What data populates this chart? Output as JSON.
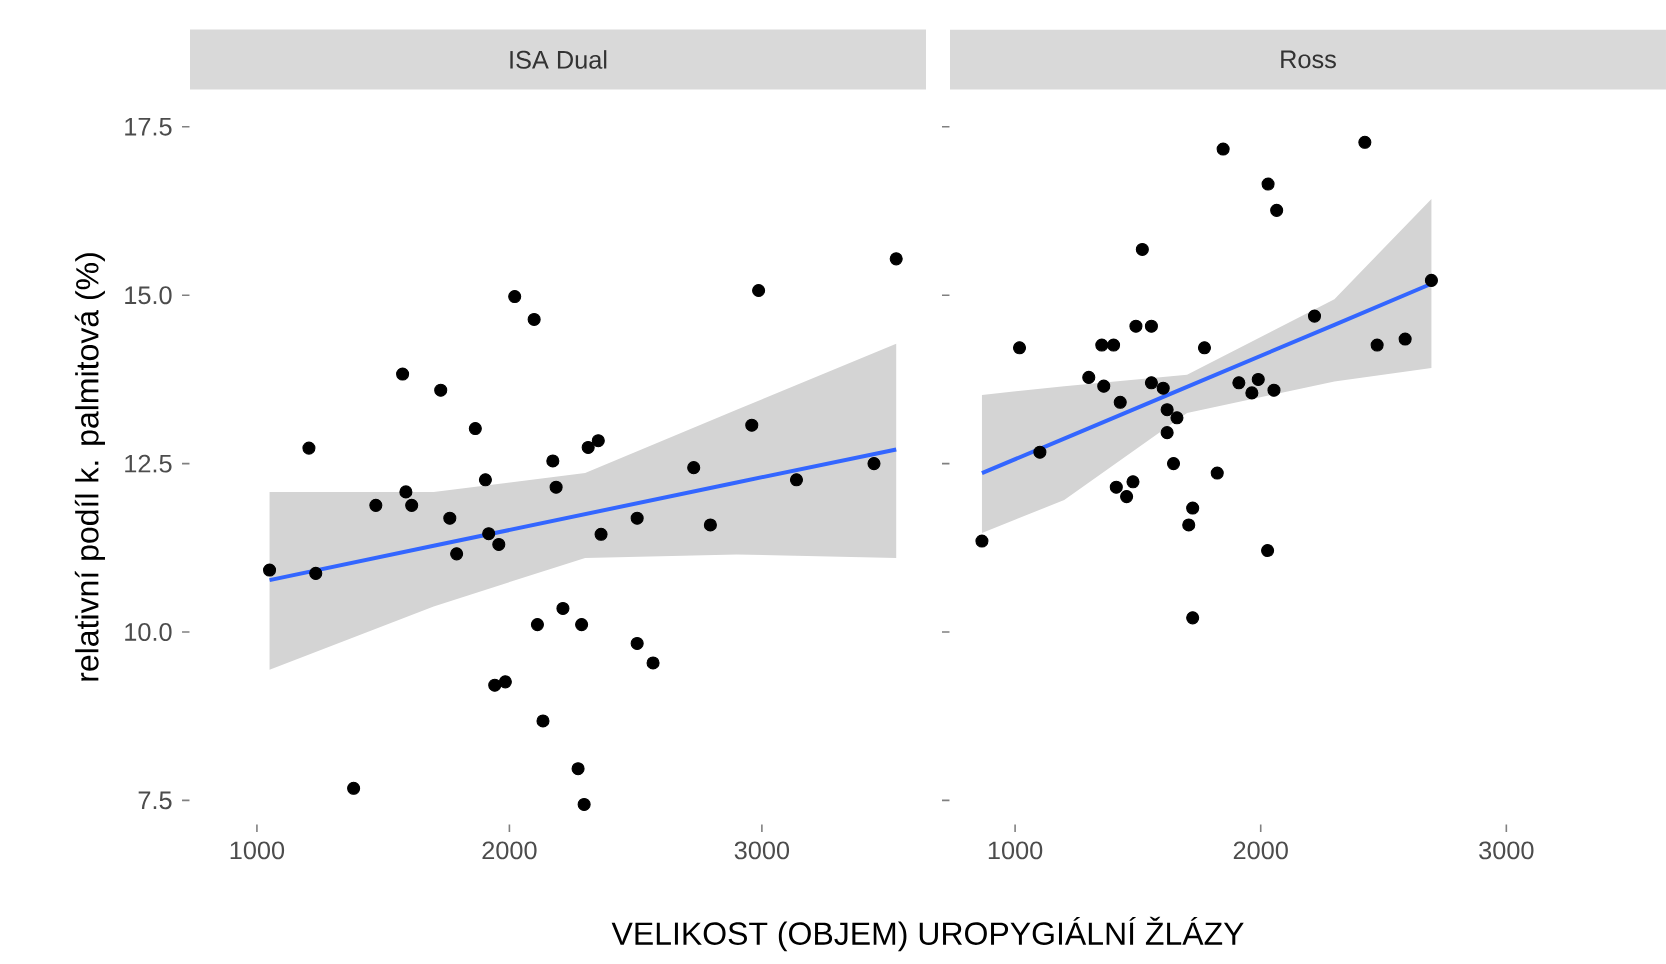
{
  "chart_data": [
    {
      "type": "scatter",
      "title": "ISA Dual",
      "xlabel": "VELIKOST (OBJEM) UROPYGIÁLNÍ ŽLÁZY",
      "ylabel": "relativní podíl k. palmitová (%)",
      "xlim": [
        735,
        3650
      ],
      "ylim": [
        7.15,
        17.75
      ],
      "xticks": [
        1000,
        2000,
        3000
      ],
      "yticks": [
        {
          "value": 7.5,
          "label": "7.5"
        },
        {
          "value": 10,
          "label": "10.0"
        },
        {
          "value": 12.5,
          "label": "12.5"
        },
        {
          "value": 15,
          "label": "15.0"
        },
        {
          "value": 17.5,
          "label": "17.5"
        }
      ],
      "grid": false,
      "series": [
        {
          "marker": "circle",
          "color": "#000000",
          "x": [
            1050,
            1233,
            1206,
            1383,
            1471,
            1577,
            1590,
            1613,
            1728,
            1764,
            1791,
            1865,
            1905,
            1918,
            1958,
            1942,
            1984,
            2021,
            2098,
            2111,
            2133,
            2172,
            2185,
            2212,
            2272,
            2286,
            2296,
            2312,
            2352,
            2363,
            2506,
            2506,
            2569,
            2730,
            2796,
            2960,
            2987,
            3137,
            3444,
            3532
          ],
          "values": [
            10.92,
            10.87,
            12.73,
            7.68,
            11.88,
            13.83,
            12.08,
            11.88,
            13.59,
            11.69,
            11.16,
            13.02,
            12.26,
            11.46,
            11.3,
            9.21,
            9.26,
            14.98,
            14.64,
            10.11,
            8.68,
            12.54,
            12.15,
            10.35,
            7.97,
            10.11,
            7.44,
            12.74,
            12.84,
            11.45,
            11.69,
            9.83,
            9.54,
            12.44,
            11.59,
            13.07,
            15.07,
            12.26,
            12.5,
            15.54
          ]
        },
        {
          "type": "line",
          "color": "#3366ff",
          "x": [
            1050,
            1700,
            2300,
            2900,
            3532
          ],
          "values": [
            10.77,
            11.28,
            11.75,
            12.22,
            12.71
          ],
          "lower": [
            9.44,
            10.38,
            11.1,
            11.15,
            11.1
          ],
          "upper": [
            12.08,
            12.08,
            12.36,
            13.3,
            14.28
          ]
        }
      ]
    },
    {
      "type": "scatter",
      "title": "Ross",
      "xlim": [
        735,
        3650
      ],
      "ylim": [
        7.15,
        17.75
      ],
      "xticks": [
        1000,
        2000,
        3000
      ],
      "yticks": [
        {
          "value": 7.5,
          "label": null
        },
        {
          "value": 10,
          "label": null
        },
        {
          "value": 12.5,
          "label": null
        },
        {
          "value": 15,
          "label": null
        },
        {
          "value": 17.5,
          "label": null
        }
      ],
      "tick_labels": "x",
      "grid": false,
      "series": [
        {
          "marker": "circle",
          "color": "#000000",
          "x": [
            865,
            1018,
            1101,
            1300,
            1361,
            1353,
            1401,
            1428,
            1412,
            1454,
            1480,
            1492,
            1555,
            1518,
            1555,
            1603,
            1619,
            1659,
            1619,
            1645,
            1723,
            1707,
            1723,
            1771,
            1823,
            1847,
            1911,
            1964,
            1990,
            2030,
            2065,
            2028,
            2054,
            2219,
            2424,
            2474,
            2588,
            2695
          ],
          "values": [
            11.35,
            14.22,
            12.67,
            13.78,
            13.65,
            14.26,
            14.26,
            13.41,
            12.15,
            12.01,
            12.23,
            14.54,
            14.54,
            15.68,
            13.7,
            13.62,
            13.3,
            13.18,
            12.96,
            12.5,
            11.84,
            11.59,
            10.21,
            14.22,
            12.36,
            17.17,
            13.7,
            13.55,
            13.75,
            16.65,
            16.26,
            11.21,
            13.59,
            14.69,
            17.27,
            14.26,
            14.35,
            15.22
          ]
        },
        {
          "type": "line",
          "color": "#3366ff",
          "x": [
            865,
            1200,
            1700,
            2300,
            2695
          ],
          "values": [
            12.36,
            12.87,
            13.64,
            14.56,
            15.17
          ],
          "lower": [
            11.47,
            11.96,
            13.25,
            13.72,
            13.92
          ],
          "upper": [
            13.52,
            13.65,
            13.82,
            14.94,
            16.43
          ]
        }
      ]
    }
  ]
}
